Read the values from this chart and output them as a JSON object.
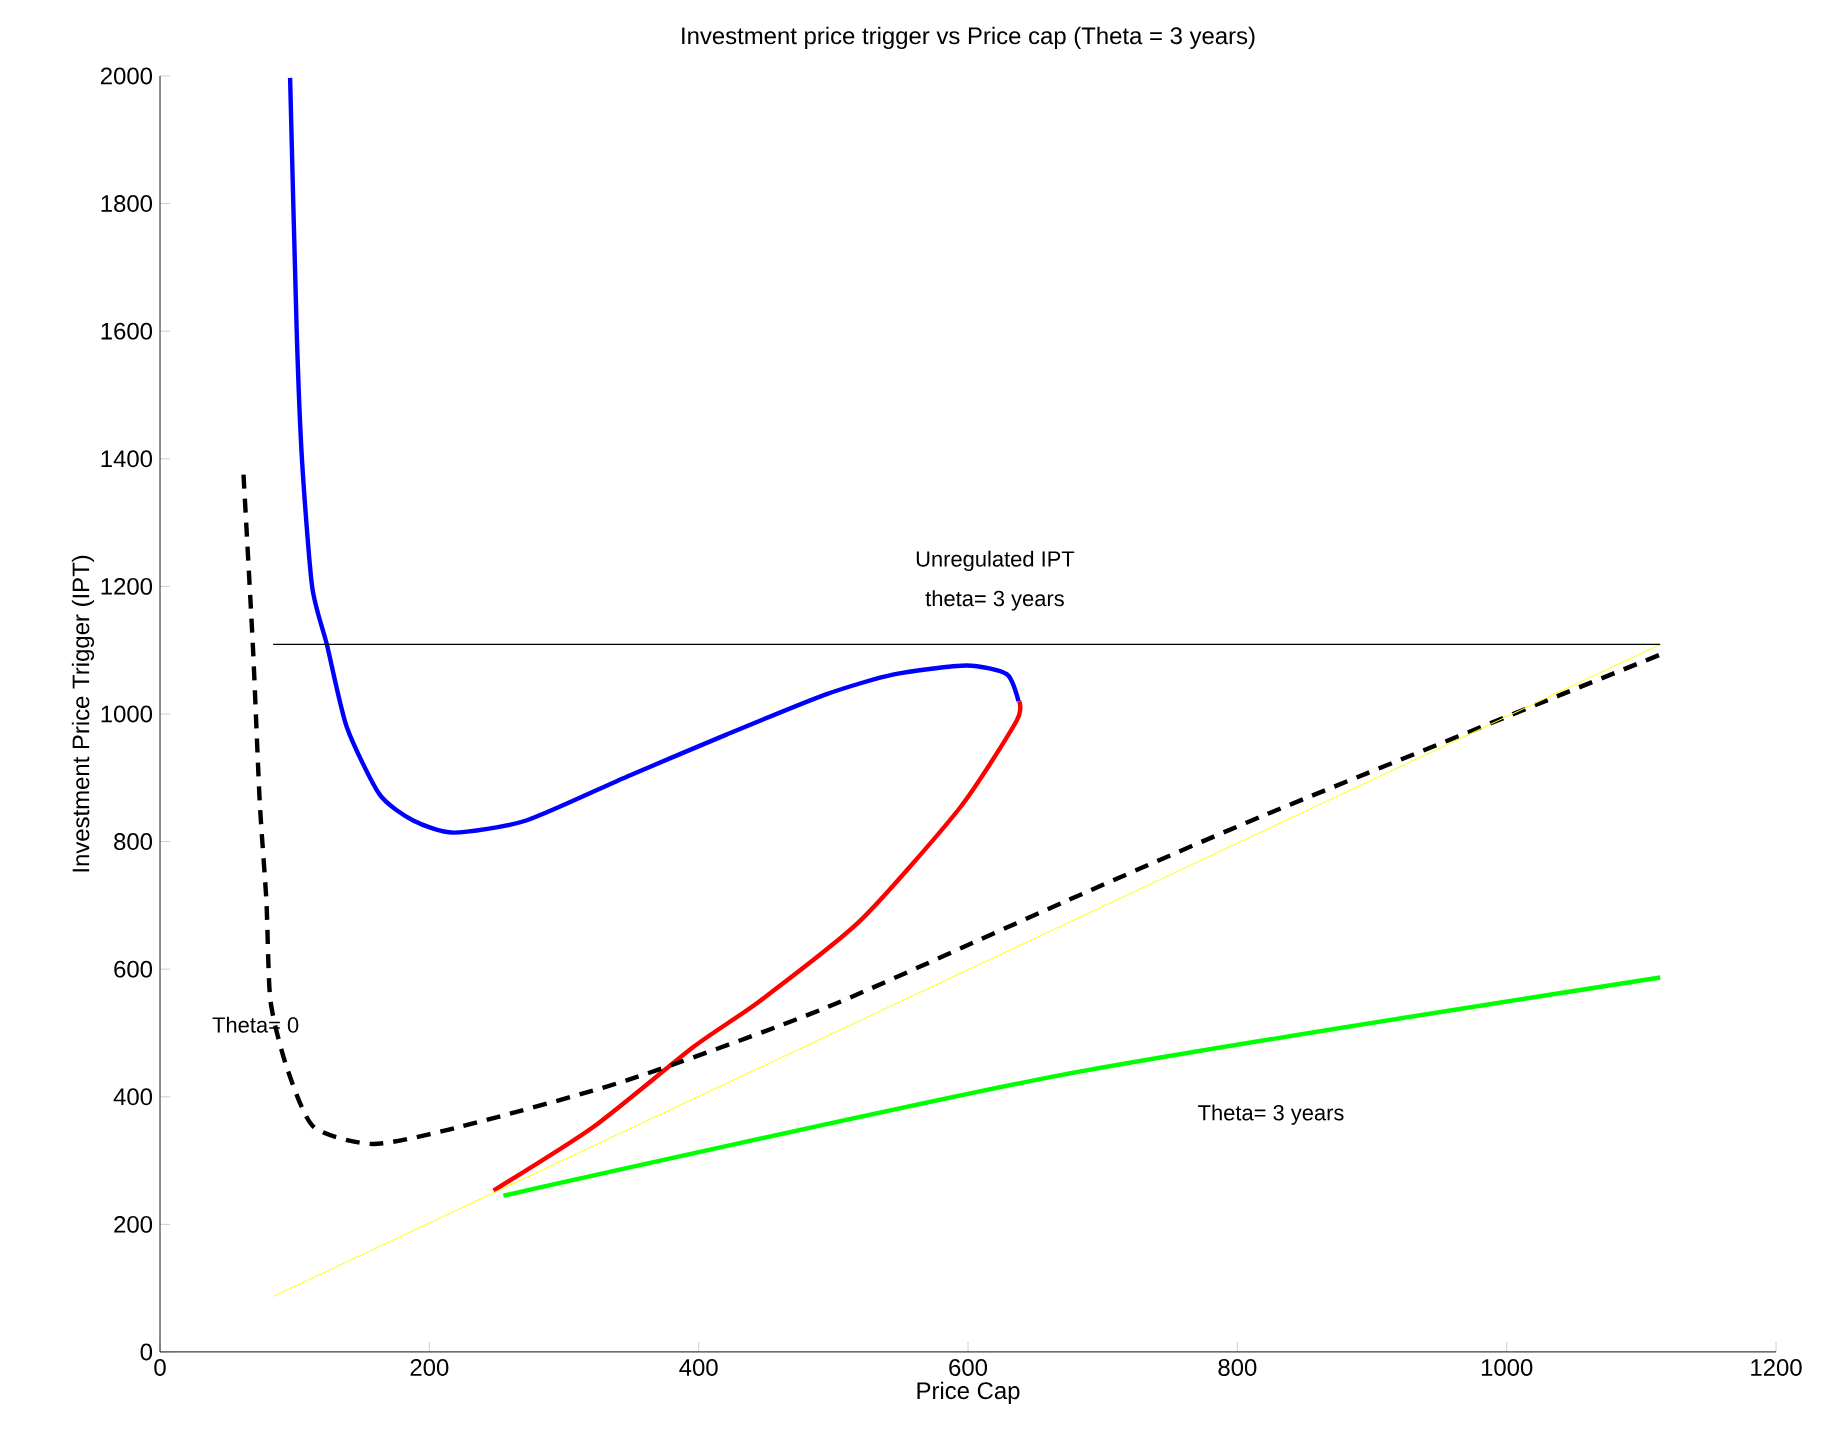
{
  "chart_data": {
    "type": "line",
    "title": "Investment price trigger vs Price cap (Theta = 3 years)",
    "xlabel": "Price Cap",
    "ylabel": "Investment Price Trigger (IPT)",
    "xlim": [
      0,
      1200
    ],
    "ylim": [
      0,
      2000
    ],
    "xticks": [
      0,
      200,
      400,
      600,
      800,
      1000,
      1200
    ],
    "yticks": [
      0,
      200,
      400,
      600,
      800,
      1000,
      1200,
      1400,
      1600,
      1800,
      2000
    ],
    "series": [
      {
        "color": "#0000ff",
        "x": [
          96.6,
          101.5,
          105.5,
          113,
          124,
          138.6,
          163,
          188,
          218,
          272,
          347,
          421,
          495,
          545,
          599,
          629,
          637.5
        ],
        "values": [
          1997,
          1600,
          1396,
          1199,
          1108,
          980,
          874,
          833,
          814,
          833,
          902,
          968,
          1031,
          1062,
          1076,
          1062,
          1020
        ]
      },
      {
        "color": "#ff0000",
        "x": [
          638,
          636,
          594,
          520,
          446,
          396,
          322,
          247.7
        ],
        "values": [
          1020,
          989,
          853,
          676,
          551,
          478,
          353,
          253
        ]
      },
      {
        "color": "#000000",
        "line_style": "dashed",
        "x": [
          62,
          69,
          74,
          79,
          82,
          94,
          114,
          158.5,
          223,
          347,
          495,
          673,
          822,
          1114
        ],
        "values": [
          1375,
          1105,
          864,
          707,
          551,
          447,
          353,
          326,
          353,
          426,
          540,
          707,
          843,
          1093
        ]
      },
      {
        "color": "#ffff00",
        "x": [
          84,
          1114
        ],
        "values": [
          87,
          1109
        ]
      },
      {
        "color": "#00ff00",
        "x": [
          255,
          669,
          1114
        ],
        "values": [
          245,
          434,
          587
        ]
      },
      {
        "color": "#000000",
        "x": [
          84,
          1114
        ],
        "values": [
          1109,
          1109
        ]
      }
    ],
    "annotations": [
      "Unregulated IPT",
      "theta= 3 years",
      "Theta= 0",
      "Theta= 3 years"
    ]
  }
}
